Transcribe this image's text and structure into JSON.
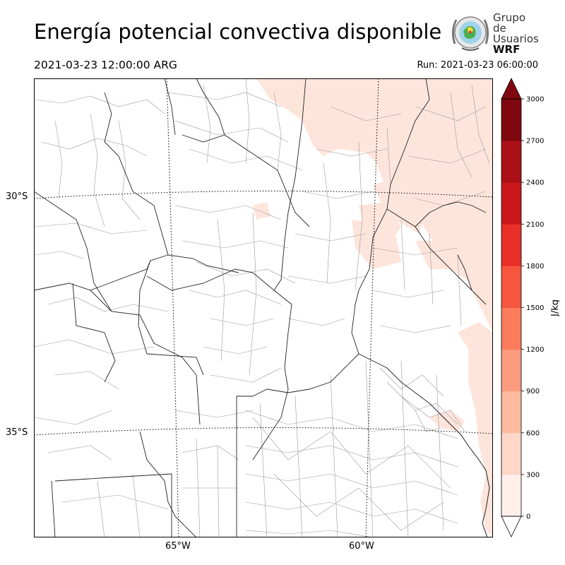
{
  "header": {
    "title": "Energía potencial convectiva disponible",
    "valid_time": "2021-03-23 12:00:00 ARG",
    "run_time": "Run: 2021-03-23 06:00:00"
  },
  "logo": {
    "line1": "Grupo de",
    "line2": "Usuarios",
    "line3": "WRF"
  },
  "map": {
    "lat_labels": [
      "30°S",
      "35°S"
    ],
    "lon_labels": [
      "65°W",
      "60°W"
    ],
    "field_color": "#fee5dc"
  },
  "colorbar": {
    "label": "J/kg",
    "ticks": [
      "0",
      "300",
      "600",
      "900",
      "1200",
      "1500",
      "1800",
      "2100",
      "2400",
      "2700",
      "3000"
    ],
    "colors": [
      "#fff0ea",
      "#fdd7c8",
      "#fcbba1",
      "#fc9c7f",
      "#fb7c5c",
      "#f6563d",
      "#e83029",
      "#cb171c",
      "#ab1016",
      "#7f0810"
    ]
  }
}
